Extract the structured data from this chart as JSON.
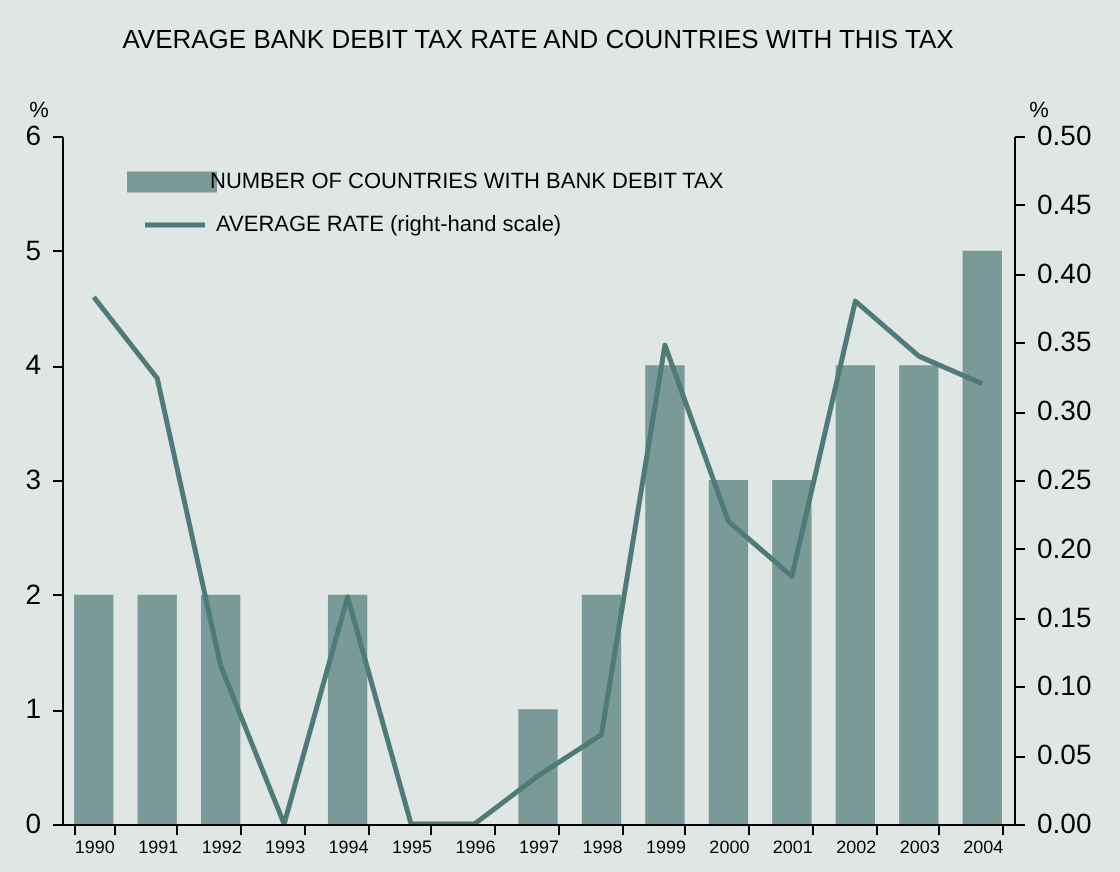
{
  "chart_data": {
    "type": "bar",
    "title": "AVERAGE BANK DEBIT TAX RATE AND COUNTRIES WITH THIS TAX",
    "ylabel": "%",
    "y2label": "%",
    "categories": [
      "1990",
      "1991",
      "1992",
      "1993",
      "1994",
      "1995",
      "1996",
      "1997",
      "1998",
      "1999",
      "2000",
      "2001",
      "2002",
      "2003",
      "2004"
    ],
    "series": [
      {
        "name": "NUMBER OF COUNTRIES WITH BANK DEBIT TAX",
        "color": "#7a9a98",
        "values": [
          2,
          2,
          2,
          0,
          2,
          0,
          0,
          1,
          2,
          4,
          3,
          3,
          4,
          4,
          5
        ]
      },
      {
        "name": "AVERAGE RATE (right-hand scale)",
        "type": "line",
        "axis": "y2",
        "color": "#4e7a77",
        "values": [
          0.383,
          0.324,
          0.115,
          0,
          0.165,
          0,
          0,
          0.035,
          0.065,
          0.348,
          0.22,
          0.18,
          0.38,
          0.34,
          0.32
        ]
      }
    ],
    "ylim": [
      0,
      6
    ],
    "yticks": [
      0,
      1,
      2,
      3,
      4,
      5,
      6
    ],
    "y2lim": [
      0,
      0.5
    ],
    "y2ticks": [
      {
        "value": 0,
        "label": "0.00"
      },
      {
        "value": 0.05,
        "label": "0.05"
      },
      {
        "value": 0.1,
        "label": "0.10"
      },
      {
        "value": 0.15,
        "label": "0.15"
      },
      {
        "value": 0.2,
        "label": "0.20"
      },
      {
        "value": 0.25,
        "label": "0.25"
      },
      {
        "value": 0.3,
        "label": "0.30"
      },
      {
        "value": 0.35,
        "label": "0.35"
      },
      {
        "value": 0.4,
        "label": "0.40"
      },
      {
        "value": 0.45,
        "label": "0.45"
      },
      {
        "value": 0.5,
        "label": "0.50"
      }
    ],
    "grid": false,
    "legend": "top left"
  }
}
